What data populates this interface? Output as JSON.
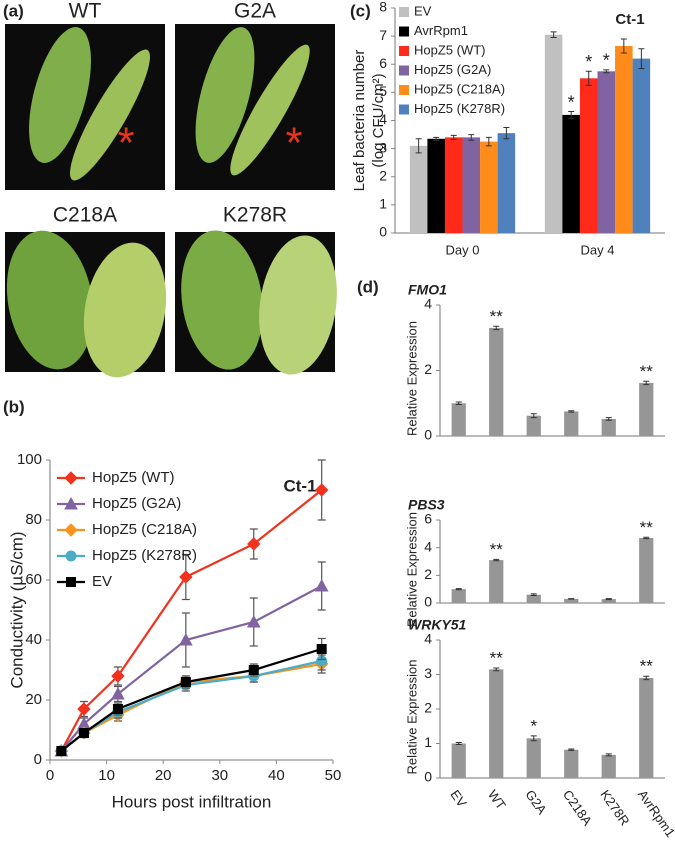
{
  "panel_labels": [
    "(a)",
    "(b)",
    "(c)",
    "(d)"
  ],
  "photos": [
    {
      "label": "WT",
      "mark": "*"
    },
    {
      "label": "G2A",
      "mark": "*"
    },
    {
      "label": "C218A"
    },
    {
      "label": "K278R"
    }
  ],
  "chart_data": [
    {
      "type": "line",
      "annotation": "Ct-1",
      "xlabel": "Hours post infiltration",
      "ylabel": "Conductivity (µS/cm)",
      "x": [
        2,
        6,
        12,
        24,
        36,
        48
      ],
      "xlim": [
        0,
        50
      ],
      "xticks": [
        0,
        10,
        20,
        30,
        40,
        50
      ],
      "ylim": [
        0,
        100
      ],
      "yticks": [
        0,
        20,
        40,
        60,
        80,
        100
      ],
      "series": [
        {
          "name": "HopZ5 (WT)",
          "color": "#f0321e",
          "marker": "diamond",
          "values": [
            3,
            17,
            28,
            61,
            72,
            90
          ],
          "errors": [
            1,
            2.5,
            3,
            7.5,
            5,
            10
          ]
        },
        {
          "name": "HopZ5 (G2A)",
          "color": "#8064a2",
          "marker": "triangle",
          "values": [
            3,
            12,
            22,
            40,
            46,
            58
          ],
          "errors": [
            1,
            2,
            2.5,
            9,
            8,
            8
          ]
        },
        {
          "name": "HopZ5 (C218A)",
          "color": "#f7941d",
          "marker": "diamond",
          "values": [
            3,
            9,
            15,
            26,
            28,
            32
          ],
          "errors": [
            1,
            1.5,
            2,
            2,
            2,
            3
          ]
        },
        {
          "name": "HopZ5 (K278R)",
          "color": "#4bacc6",
          "marker": "circle",
          "values": [
            3,
            9,
            16,
            25,
            28,
            33
          ],
          "errors": [
            1,
            1,
            2,
            2,
            2,
            3
          ]
        },
        {
          "name": "EV",
          "color": "#000000",
          "marker": "square",
          "values": [
            3,
            9,
            17,
            26,
            30,
            37
          ],
          "errors": [
            1,
            1,
            2,
            2,
            2,
            3.5
          ]
        }
      ]
    },
    {
      "type": "bar",
      "annotation": "Ct-1",
      "ylabel": [
        "Leaf bacteria number",
        "(log CFU/cm²)"
      ],
      "categories": [
        "Day 0",
        "Day 4"
      ],
      "ylim": [
        0,
        8
      ],
      "yticks": [
        0,
        1,
        2,
        3,
        4,
        5,
        6,
        7,
        8
      ],
      "series": [
        {
          "name": "EV",
          "color": "#c0c0c0",
          "values": [
            3.1,
            7.05
          ],
          "errors": [
            0.25,
            0.1
          ],
          "marks": [
            null,
            null
          ]
        },
        {
          "name": "AvrRpm1",
          "color": "#000000",
          "values": [
            3.35,
            4.2
          ],
          "errors": [
            0.05,
            0.12
          ],
          "marks": [
            null,
            "*"
          ]
        },
        {
          "name": "HopZ5 (WT)",
          "color": "#ff2a1a",
          "values": [
            3.4,
            5.5
          ],
          "errors": [
            0.07,
            0.25
          ],
          "marks": [
            null,
            "*"
          ]
        },
        {
          "name": "HopZ5 (G2A)",
          "color": "#8064a2",
          "values": [
            3.4,
            5.75
          ],
          "errors": [
            0.1,
            0.05
          ],
          "marks": [
            null,
            "*"
          ]
        },
        {
          "name": "HopZ5 (C218A)",
          "color": "#ff8c1a",
          "values": [
            3.25,
            6.65
          ],
          "errors": [
            0.15,
            0.25
          ],
          "marks": [
            null,
            null
          ]
        },
        {
          "name": "HopZ5 (K278R)",
          "color": "#4f81bd",
          "values": [
            3.55,
            6.2
          ],
          "errors": [
            0.2,
            0.35
          ],
          "marks": [
            null,
            null
          ]
        }
      ]
    },
    {
      "type": "bar",
      "categories": [
        "EV",
        "WT",
        "G2A",
        "C218A",
        "K278R",
        "AvrRpm1"
      ],
      "color": "#969696",
      "panels": [
        {
          "title": "FMO1",
          "ylabel": "Relative Expression",
          "ylim": [
            0,
            4
          ],
          "yticks": [
            0,
            2,
            4
          ],
          "values": [
            1.0,
            3.3,
            0.62,
            0.75,
            0.52,
            1.62
          ],
          "errors": [
            0.04,
            0.05,
            0.06,
            0.02,
            0.04,
            0.05
          ],
          "marks": [
            null,
            "**",
            null,
            null,
            null,
            "**"
          ]
        },
        {
          "title": "PBS3",
          "ylabel": "Relative Expression",
          "ylim": [
            0,
            6
          ],
          "yticks": [
            0,
            2,
            4,
            6
          ],
          "values": [
            1.0,
            3.1,
            0.6,
            0.3,
            0.28,
            4.7
          ],
          "errors": [
            0.04,
            0.05,
            0.06,
            0.02,
            0.04,
            0.05
          ],
          "marks": [
            null,
            "**",
            null,
            null,
            null,
            "**"
          ]
        },
        {
          "title": "WRKY51",
          "ylabel": "Relative Expression",
          "ylim": [
            0,
            4
          ],
          "yticks": [
            0,
            1,
            2,
            3,
            4
          ],
          "values": [
            1.0,
            3.15,
            1.15,
            0.82,
            0.67,
            2.9
          ],
          "errors": [
            0.03,
            0.04,
            0.07,
            0.02,
            0.03,
            0.05
          ],
          "marks": [
            null,
            "**",
            "*",
            null,
            null,
            "**"
          ]
        }
      ]
    }
  ]
}
